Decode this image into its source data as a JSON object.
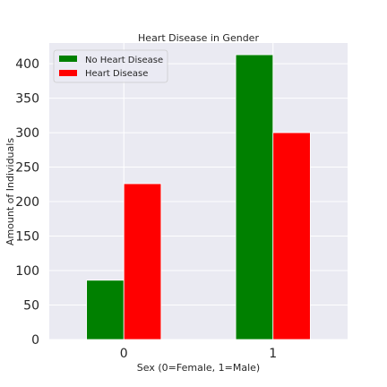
{
  "chart_data": {
    "type": "bar",
    "title": "Heart Disease in Gender",
    "xlabel": "Sex (0=Female, 1=Male)",
    "ylabel": "Amount of Individuals",
    "categories": [
      "0",
      "1"
    ],
    "series": [
      {
        "name": "No Heart Disease",
        "color": "#008000",
        "values": [
          86,
          413
        ]
      },
      {
        "name": "Heart Disease",
        "color": "#ff0000",
        "values": [
          226,
          300
        ]
      }
    ],
    "ylim": [
      0,
      430
    ],
    "yticks": [
      0,
      50,
      100,
      150,
      200,
      250,
      300,
      350,
      400
    ],
    "grid": true,
    "legend_position": "top-left",
    "background_color": "#eaeaf2",
    "grid_color": "#ffffff"
  }
}
